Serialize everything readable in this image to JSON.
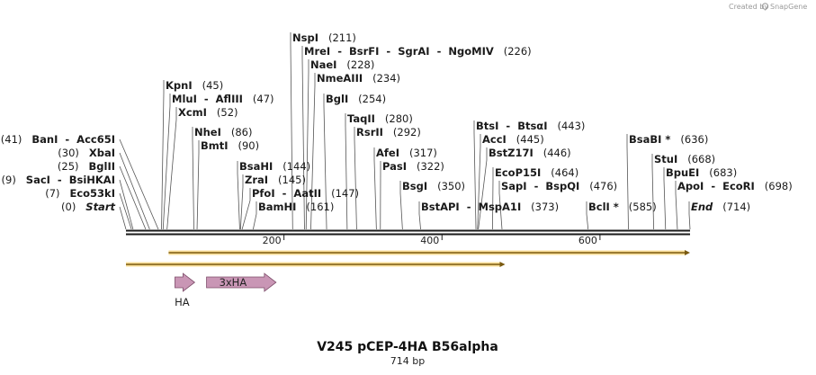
{
  "credit": "Created by",
  "brand": "SnapGene",
  "title": "V245 pCEP-4HA B56alpha",
  "subtitle": "714 bp",
  "length": 714,
  "ticks": [
    200,
    400,
    600
  ],
  "sites": [
    {
      "names": [
        "NspI"
      ],
      "pos": "(211)",
      "bp": 211
    },
    {
      "names": [
        "MreI",
        "BsrFI",
        "SgrAI",
        "NgoMIV"
      ],
      "pos": "(226)",
      "bp": 226
    },
    {
      "names": [
        "NaeI"
      ],
      "pos": "(228)",
      "bp": 228
    },
    {
      "names": [
        "NmeAIII"
      ],
      "pos": "(234)",
      "bp": 234
    },
    {
      "names": [
        "BglI"
      ],
      "pos": "(254)",
      "bp": 254
    },
    {
      "names": [
        "TaqII"
      ],
      "pos": "(280)",
      "bp": 280
    },
    {
      "names": [
        "RsrII"
      ],
      "pos": "(292)",
      "bp": 292
    },
    {
      "names": [
        "AfeI"
      ],
      "pos": "(317)",
      "bp": 317
    },
    {
      "names": [
        "PasI"
      ],
      "pos": "(322)",
      "bp": 322
    },
    {
      "names": [
        "BsgI"
      ],
      "pos": "(350)",
      "bp": 350
    },
    {
      "names": [
        "BstAPI",
        "MspA1I"
      ],
      "pos": "(373)",
      "bp": 373
    },
    {
      "names": [
        "KpnI"
      ],
      "pos": "(45)",
      "bp": 45
    },
    {
      "names": [
        "MluI",
        "AflIII"
      ],
      "pos": "(47)",
      "bp": 47
    },
    {
      "names": [
        "XcmI"
      ],
      "pos": "(52)",
      "bp": 52
    },
    {
      "names": [
        "NheI"
      ],
      "pos": "(86)",
      "bp": 86
    },
    {
      "names": [
        "BmtI"
      ],
      "pos": "(90)",
      "bp": 90
    },
    {
      "names": [
        "BsaHI"
      ],
      "pos": "(144)",
      "bp": 144
    },
    {
      "names": [
        "ZraI"
      ],
      "pos": "(145)",
      "bp": 145
    },
    {
      "names": [
        "PfoI",
        "AatII"
      ],
      "pos": "(147)",
      "bp": 147
    },
    {
      "names": [
        "BamHI"
      ],
      "pos": "(161)",
      "bp": 161
    },
    {
      "names": [
        "BanI",
        "Acc65I"
      ],
      "pos": "(41)",
      "bp": 41,
      "pre": true
    },
    {
      "names": [
        "XbaI"
      ],
      "pos": "(30)",
      "bp": 30,
      "pre": true
    },
    {
      "names": [
        "BglII"
      ],
      "pos": "(25)",
      "bp": 25,
      "pre": true
    },
    {
      "names": [
        "SacI",
        "BsiHKAI"
      ],
      "pos": "(9)",
      "bp": 9,
      "pre": true
    },
    {
      "names": [
        "Eco53kI"
      ],
      "pos": "(7)",
      "bp": 7,
      "pre": true
    },
    {
      "names": [
        "Start"
      ],
      "pos": "(0)",
      "bp": 0,
      "pre": true,
      "italic": true
    },
    {
      "names": [
        "BtsI",
        "BtsαI"
      ],
      "pos": "(443)",
      "bp": 443
    },
    {
      "names": [
        "AccI"
      ],
      "pos": "(445)",
      "bp": 445
    },
    {
      "names": [
        "BstZ17I"
      ],
      "pos": "(446)",
      "bp": 446
    },
    {
      "names": [
        "EcoP15I"
      ],
      "pos": "(464)",
      "bp": 464
    },
    {
      "names": [
        "SapI",
        "BspQI"
      ],
      "pos": "(476)",
      "bp": 476
    },
    {
      "names": [
        "BclI *"
      ],
      "pos": "(585)",
      "bp": 585
    },
    {
      "names": [
        "BsaBI *"
      ],
      "pos": "(636)",
      "bp": 636
    },
    {
      "names": [
        "StuI"
      ],
      "pos": "(668)",
      "bp": 668
    },
    {
      "names": [
        "BpuEI"
      ],
      "pos": "(683)",
      "bp": 683
    },
    {
      "names": [
        "ApoI",
        "EcoRI"
      ],
      "pos": "(698)",
      "bp": 698
    },
    {
      "names": [
        "End"
      ],
      "pos": "(714)",
      "bp": 714,
      "italic": true
    }
  ],
  "orfs": [
    {
      "start": 54,
      "end": 714
    },
    {
      "start": 0,
      "end": 480
    }
  ],
  "features": [
    {
      "label": "HA",
      "start": 62,
      "end": 87,
      "label_below": true
    },
    {
      "label": "3xHA",
      "start": 102,
      "end": 190,
      "label_below": false
    }
  ],
  "colors": {
    "orf_fill": "#f2b51b",
    "orf_edge": "#7a5a10",
    "feature_fill": "#c996b5",
    "feature_edge": "#7d4d6a",
    "backbone": "#1a1a1a"
  }
}
